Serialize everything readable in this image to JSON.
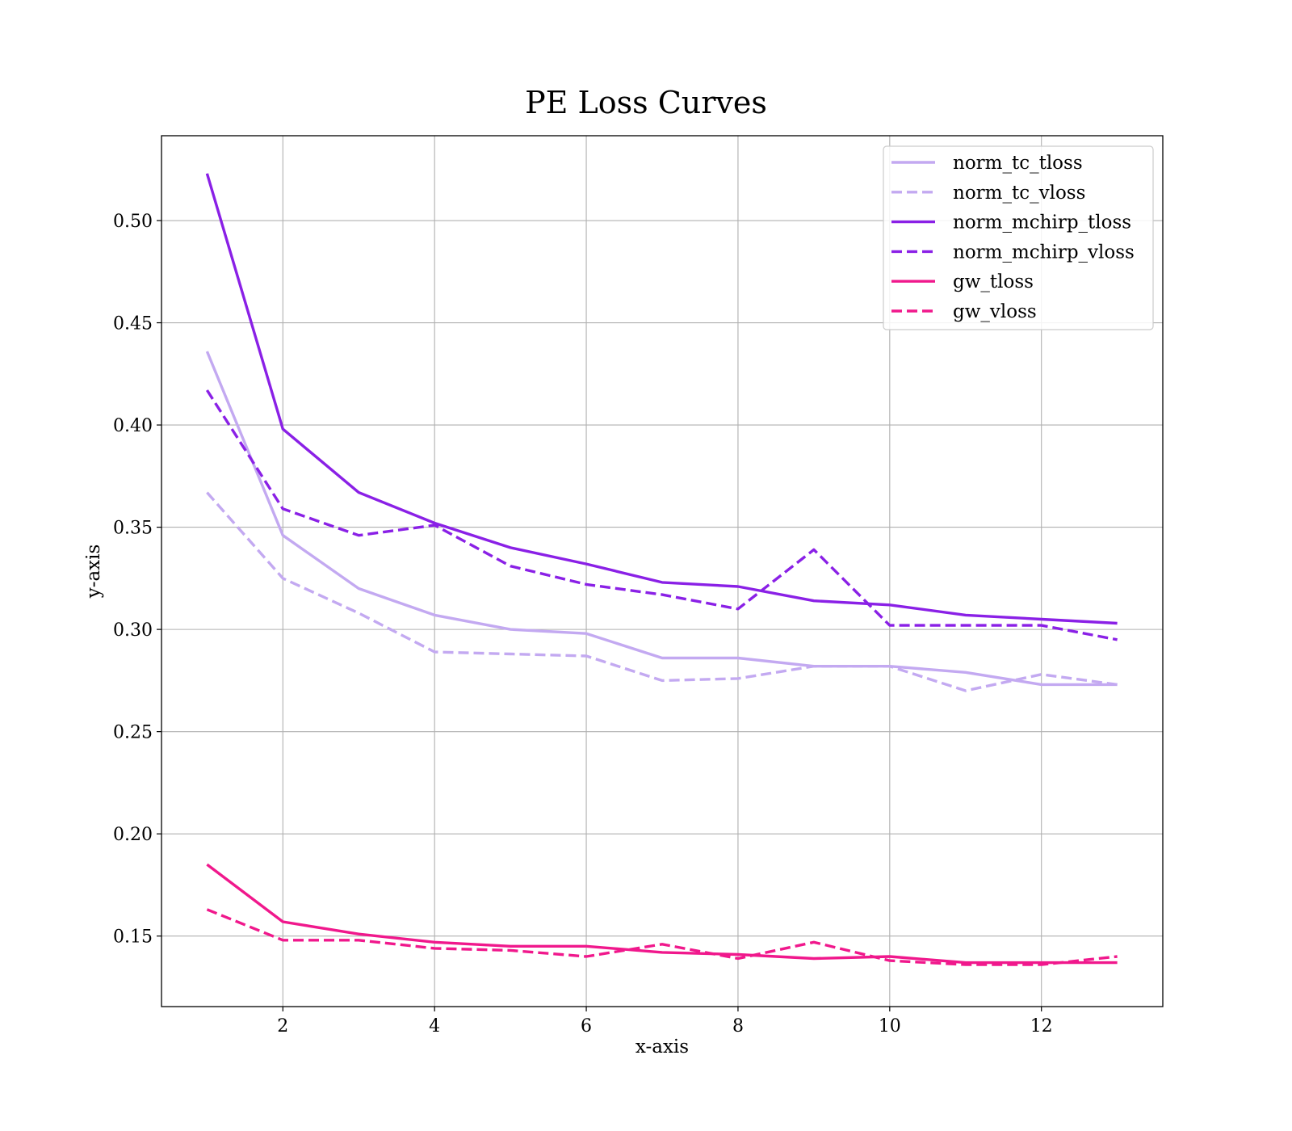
{
  "chart_data": {
    "type": "line",
    "title": "PE Loss Curves",
    "xlabel": "x-axis",
    "ylabel": "y-axis",
    "xlim": [
      0.4,
      13.6
    ],
    "ylim": [
      0.1155,
      0.5415
    ],
    "x_ticks": [
      2,
      4,
      6,
      8,
      10,
      12
    ],
    "x_tick_labels": [
      "2",
      "4",
      "6",
      "8",
      "10",
      "12"
    ],
    "y_ticks": [
      0.15,
      0.2,
      0.25,
      0.3,
      0.35,
      0.4,
      0.45,
      0.5
    ],
    "y_tick_labels": [
      "0.15",
      "0.20",
      "0.25",
      "0.30",
      "0.35",
      "0.40",
      "0.45",
      "0.50"
    ],
    "grid": true,
    "legend_position": "top-right",
    "x": [
      1,
      2,
      3,
      4,
      5,
      6,
      7,
      8,
      9,
      10,
      11,
      12,
      13
    ],
    "series": [
      {
        "name": "norm_tc_tloss",
        "color": "#c3a9f1",
        "dash": false,
        "values": [
          0.436,
          0.346,
          0.32,
          0.307,
          0.3,
          0.298,
          0.286,
          0.286,
          0.282,
          0.282,
          0.279,
          0.273,
          0.273
        ]
      },
      {
        "name": "norm_tc_vloss",
        "color": "#c3a9f1",
        "dash": true,
        "values": [
          0.367,
          0.325,
          0.308,
          0.289,
          0.288,
          0.287,
          0.275,
          0.276,
          0.282,
          0.282,
          0.27,
          0.278,
          0.273
        ]
      },
      {
        "name": "norm_mchirp_tloss",
        "color": "#8a20e6",
        "dash": false,
        "values": [
          0.523,
          0.398,
          0.367,
          0.352,
          0.34,
          0.332,
          0.323,
          0.321,
          0.314,
          0.312,
          0.307,
          0.305,
          0.303
        ]
      },
      {
        "name": "norm_mchirp_vloss",
        "color": "#8a20e6",
        "dash": true,
        "values": [
          0.417,
          0.359,
          0.346,
          0.351,
          0.331,
          0.322,
          0.317,
          0.31,
          0.339,
          0.302,
          0.302,
          0.302,
          0.295
        ]
      },
      {
        "name": "gw_tloss",
        "color": "#f0188c",
        "dash": false,
        "values": [
          0.185,
          0.157,
          0.151,
          0.147,
          0.145,
          0.145,
          0.142,
          0.141,
          0.139,
          0.14,
          0.137,
          0.137,
          0.137
        ]
      },
      {
        "name": "gw_vloss",
        "color": "#f0188c",
        "dash": true,
        "values": [
          0.163,
          0.148,
          0.148,
          0.144,
          0.143,
          0.14,
          0.146,
          0.139,
          0.147,
          0.138,
          0.136,
          0.136,
          0.14
        ]
      }
    ]
  }
}
